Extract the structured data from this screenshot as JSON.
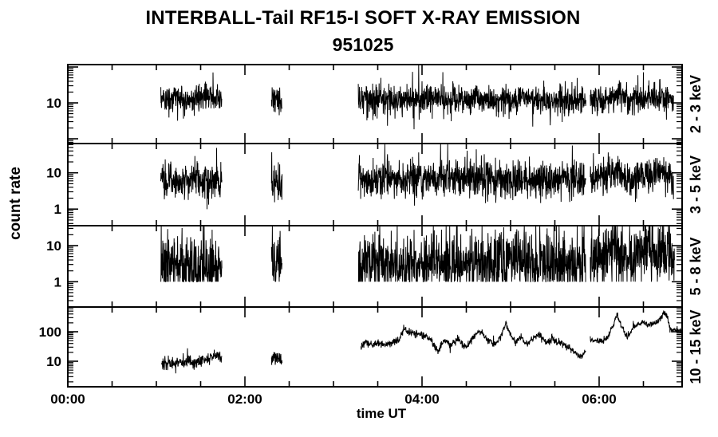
{
  "page": {
    "background": "#ffffff",
    "foreground": "#000000"
  },
  "header": {
    "title": "INTERBALL-Tail RF15-I SOFT X-RAY EMISSION",
    "subtitle": "951025"
  },
  "axes": {
    "xlabel": "time UT",
    "ylabel": "count rate"
  },
  "chart_data": {
    "type": "line",
    "title": "INTERBALL-Tail RF15-I SOFT X-RAY EMISSION",
    "subtitle": "951025",
    "xlabel": "time UT",
    "ylabel": "count rate",
    "line_color": "#000000",
    "x_axis": {
      "range_hours": [
        0,
        6.937
      ],
      "major_ticks": [
        {
          "t": 0,
          "label": "00:00"
        },
        {
          "t": 2,
          "label": "02:00"
        },
        {
          "t": 4,
          "label": "04:00"
        },
        {
          "t": 6,
          "label": "06:00"
        }
      ],
      "minor_step_hours": 0.5
    },
    "panels": [
      {
        "label": "2 - 3 keV",
        "scale": "log",
        "ylog_range": [
          -0.133,
          2.067
        ],
        "ytick_labels": [
          {
            "value": 10,
            "label": "10"
          }
        ],
        "segments": [
          {
            "dt": 0.0025,
            "sigma": 0.2,
            "spike_prob": 0.03,
            "anchors": [
              [
                1.05,
                13
              ],
              [
                1.74,
                13
              ]
            ]
          },
          {
            "dt": 0.0025,
            "sigma": 0.2,
            "spike_prob": 0.03,
            "anchors": [
              [
                2.3,
                13
              ],
              [
                2.42,
                12
              ]
            ]
          },
          {
            "dt": 0.0025,
            "sigma": 0.2,
            "spike_prob": 0.03,
            "anchors": [
              [
                3.28,
                13
              ],
              [
                4.5,
                12.5
              ],
              [
                5.85,
                12
              ]
            ]
          },
          {
            "dt": 0.0025,
            "sigma": 0.2,
            "spike_prob": 0.03,
            "anchors": [
              [
                5.9,
                12
              ],
              [
                6.1,
                12
              ],
              [
                6.18,
                16
              ],
              [
                6.25,
                20
              ],
              [
                6.32,
                13
              ],
              [
                6.45,
                12
              ],
              [
                6.6,
                13
              ],
              [
                6.84,
                13
              ]
            ]
          }
        ]
      },
      {
        "label": "3 - 5 keV",
        "scale": "log",
        "ylog_range": [
          -0.457,
          1.807
        ],
        "ytick_labels": [
          {
            "value": 10,
            "label": "10"
          },
          {
            "value": 1,
            "label": "1"
          }
        ],
        "segments": [
          {
            "dt": 0.0025,
            "sigma": 0.24,
            "spike_prob": 0.03,
            "anchors": [
              [
                1.05,
                6
              ],
              [
                1.74,
                6
              ]
            ]
          },
          {
            "dt": 0.0025,
            "sigma": 0.26,
            "spike_prob": 0.05,
            "anchors": [
              [
                2.3,
                6
              ],
              [
                2.42,
                5
              ]
            ]
          },
          {
            "dt": 0.0025,
            "sigma": 0.24,
            "spike_prob": 0.03,
            "anchors": [
              [
                3.28,
                6.5
              ],
              [
                4.6,
                7
              ],
              [
                5.85,
                6
              ]
            ]
          },
          {
            "dt": 0.0025,
            "sigma": 0.24,
            "spike_prob": 0.03,
            "anchors": [
              [
                5.9,
                7
              ],
              [
                6.1,
                8
              ],
              [
                6.2,
                15
              ],
              [
                6.28,
                8
              ],
              [
                6.35,
                5
              ],
              [
                6.45,
                9
              ],
              [
                6.55,
                10
              ],
              [
                6.65,
                9
              ],
              [
                6.72,
                13
              ],
              [
                6.8,
                8
              ],
              [
                6.84,
                3.5
              ]
            ]
          }
        ]
      },
      {
        "label": "5 - 8 keV",
        "scale": "log",
        "ylog_range": [
          -0.7,
          1.552
        ],
        "ytick_labels": [
          {
            "value": 10,
            "label": "10"
          },
          {
            "value": 1,
            "label": "1"
          }
        ],
        "segments": [
          {
            "dt": 0.0025,
            "sigma": 0.42,
            "spike_prob": 0.05,
            "clip_min": 1.0,
            "anchors": [
              [
                1.05,
                2.8
              ],
              [
                1.74,
                2.8
              ]
            ]
          },
          {
            "dt": 0.0025,
            "sigma": 0.42,
            "spike_prob": 0.05,
            "clip_min": 1.0,
            "anchors": [
              [
                2.3,
                2.9
              ],
              [
                2.42,
                2.8
              ]
            ]
          },
          {
            "dt": 0.0025,
            "sigma": 0.42,
            "spike_prob": 0.05,
            "clip_min": 1.0,
            "anchors": [
              [
                3.28,
                3.2
              ],
              [
                4.0,
                3.0
              ],
              [
                4.6,
                3.5
              ],
              [
                5.0,
                3.2
              ],
              [
                5.85,
                3.0
              ]
            ]
          },
          {
            "dt": 0.0025,
            "sigma": 0.4,
            "spike_prob": 0.05,
            "clip_min": 1.0,
            "anchors": [
              [
                5.9,
                4
              ],
              [
                6.1,
                5
              ],
              [
                6.2,
                12
              ],
              [
                6.28,
                6
              ],
              [
                6.35,
                4
              ],
              [
                6.45,
                7
              ],
              [
                6.55,
                8
              ],
              [
                6.65,
                7
              ],
              [
                6.72,
                10
              ],
              [
                6.8,
                6
              ],
              [
                6.85,
                3
              ]
            ]
          }
        ]
      },
      {
        "label": "10 - 15 keV",
        "scale": "log",
        "ylog_range": [
          0.135,
          2.838
        ],
        "ytick_labels": [
          {
            "value": 100,
            "label": "100"
          },
          {
            "value": 10,
            "label": "10"
          }
        ],
        "segments": [
          {
            "dt": 0.003,
            "sigma": 0.1,
            "spike_prob": 0.03,
            "anchors": [
              [
                1.06,
                8
              ],
              [
                1.25,
                8.5
              ],
              [
                1.45,
                9.5
              ],
              [
                1.55,
                11
              ],
              [
                1.62,
                15
              ],
              [
                1.68,
                17
              ],
              [
                1.72,
                13
              ],
              [
                1.74,
                12
              ]
            ]
          },
          {
            "dt": 0.003,
            "sigma": 0.12,
            "spike_prob": 0.04,
            "anchors": [
              [
                2.3,
                10
              ],
              [
                2.34,
                13
              ],
              [
                2.38,
                11
              ],
              [
                2.42,
                8
              ]
            ]
          },
          {
            "dt": 0.003,
            "sigma": 0.06,
            "spike_prob": 0.02,
            "anchors": [
              [
                3.31,
                28
              ],
              [
                3.36,
                45
              ],
              [
                3.42,
                35
              ],
              [
                3.5,
                42
              ],
              [
                3.58,
                34
              ],
              [
                3.66,
                45
              ],
              [
                3.74,
                50
              ],
              [
                3.79,
                130
              ],
              [
                3.83,
                95
              ],
              [
                3.92,
                88
              ],
              [
                4.02,
                78
              ],
              [
                4.1,
                55
              ],
              [
                4.18,
                22
              ],
              [
                4.26,
                55
              ],
              [
                4.33,
                36
              ],
              [
                4.41,
                62
              ],
              [
                4.49,
                28
              ],
              [
                4.58,
                65
              ],
              [
                4.66,
                105
              ],
              [
                4.74,
                55
              ],
              [
                4.82,
                35
              ],
              [
                4.9,
                80
              ],
              [
                4.95,
                185
              ],
              [
                5.0,
                75
              ],
              [
                5.06,
                45
              ],
              [
                5.12,
                68
              ],
              [
                5.18,
                38
              ],
              [
                5.25,
                58
              ],
              [
                5.32,
                82
              ],
              [
                5.4,
                42
              ],
              [
                5.47,
                55
              ],
              [
                5.53,
                45
              ],
              [
                5.6,
                36
              ],
              [
                5.67,
                28
              ],
              [
                5.74,
                17
              ],
              [
                5.8,
                15
              ],
              [
                5.85,
                22
              ]
            ]
          },
          {
            "dt": 0.003,
            "sigma": 0.05,
            "spike_prob": 0.02,
            "anchors": [
              [
                5.9,
                55
              ],
              [
                5.98,
                50
              ],
              [
                6.05,
                48
              ],
              [
                6.12,
                80
              ],
              [
                6.2,
                380
              ],
              [
                6.27,
                110
              ],
              [
                6.32,
                65
              ],
              [
                6.38,
                125
              ],
              [
                6.44,
                185
              ],
              [
                6.5,
                200
              ],
              [
                6.55,
                170
              ],
              [
                6.6,
                190
              ],
              [
                6.65,
                200
              ],
              [
                6.7,
                290
              ],
              [
                6.73,
                430
              ],
              [
                6.77,
                330
              ],
              [
                6.8,
                125
              ],
              [
                6.937,
                120
              ]
            ]
          }
        ]
      }
    ]
  }
}
